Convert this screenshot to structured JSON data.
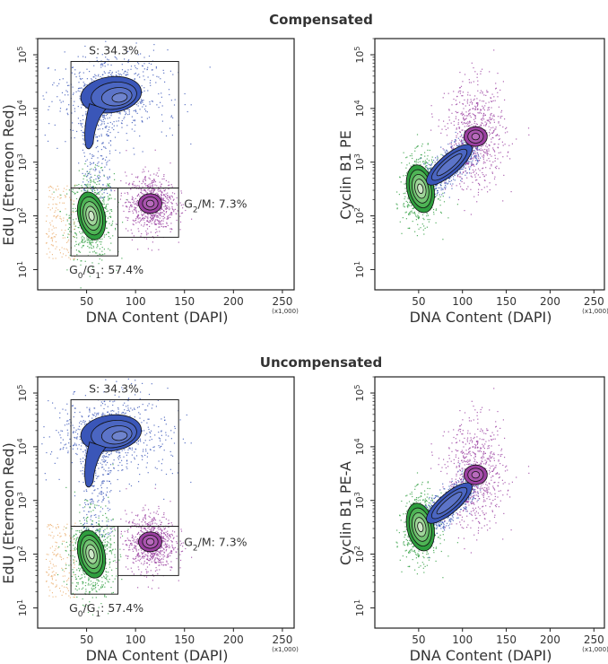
{
  "panels": [
    {
      "title": "Compensated"
    },
    {
      "title": "Uncompensated"
    }
  ],
  "chart_data": [
    {
      "type": "scatter",
      "panel": "Compensated",
      "xlabel": "DNA Content (DAPI)",
      "ylabel": "EdU (Eterneon Red)",
      "x_units": "(x1,000)",
      "xlim": [
        0,
        262
      ],
      "ylim": [
        4.2,
        200000
      ],
      "y_scale": "log",
      "x_ticks": [
        50,
        100,
        150,
        200,
        250
      ],
      "x_tick_labels": [
        "50",
        "100",
        "150",
        "200",
        "250"
      ],
      "y_ticks": [
        10,
        100,
        1000,
        10000,
        100000
      ],
      "y_tick_labels": [
        [
          "10",
          "1"
        ],
        [
          "10",
          "2"
        ],
        [
          "10",
          "3"
        ],
        [
          "10",
          "4"
        ],
        [
          "10",
          "5"
        ]
      ],
      "gates": [
        {
          "name": "S",
          "label": "S: 34.3%",
          "x": [
            34,
            144
          ],
          "y": [
            330,
            75000
          ]
        },
        {
          "name": "G0/G1",
          "label_parts": [
            [
              "G",
              ""
            ],
            [
              "0",
              "sub"
            ],
            [
              "/G",
              ""
            ],
            [
              "1",
              "sub"
            ],
            [
              ": 57.4%",
              ""
            ]
          ],
          "x": [
            34,
            82
          ],
          "y": [
            18,
            330
          ]
        },
        {
          "name": "G2/M",
          "label_parts": [
            [
              "G",
              ""
            ],
            [
              "2",
              "sub"
            ],
            [
              "/M: 7.3%",
              ""
            ]
          ],
          "x": [
            82,
            144
          ],
          "y": [
            40,
            330
          ]
        }
      ],
      "populations": [
        {
          "name": "G0/G1",
          "color": "#2e9e3e",
          "center": [
            55,
            100
          ],
          "spread": [
            8,
            0.28
          ]
        },
        {
          "name": "S",
          "color": "#3a56b8",
          "center": [
            75,
            18000
          ],
          "spread": [
            22,
            0.3
          ]
        },
        {
          "name": "G2/M",
          "color": "#9a3fa0",
          "center": [
            115,
            170
          ],
          "spread": [
            9,
            0.2
          ]
        }
      ],
      "colors": {
        "g0g1": "#2e9e3e",
        "s": "#3a56b8",
        "g2m": "#9a3fa0",
        "debris": "#e8a25a"
      }
    },
    {
      "type": "scatter",
      "panel": "Compensated",
      "xlabel": "DNA Content (DAPI)",
      "ylabel": "Cyclin B1 PE",
      "x_units": "(x1,000)",
      "xlim": [
        0,
        262
      ],
      "ylim": [
        4.2,
        200000
      ],
      "y_scale": "log",
      "x_ticks": [
        50,
        100,
        150,
        200,
        250
      ],
      "x_tick_labels": [
        "50",
        "100",
        "150",
        "200",
        "250"
      ],
      "y_ticks": [
        10,
        100,
        1000,
        10000,
        100000
      ],
      "y_tick_labels": [
        [
          "10",
          "1"
        ],
        [
          "10",
          "2"
        ],
        [
          "10",
          "3"
        ],
        [
          "10",
          "4"
        ],
        [
          "10",
          "5"
        ]
      ],
      "populations": [
        {
          "name": "G0/G1",
          "color": "#2e9e3e",
          "center": [
            52,
            320
          ],
          "spread": [
            7,
            0.22
          ]
        },
        {
          "name": "S",
          "color": "#3a56b8",
          "center_path": [
            [
              60,
              400
            ],
            [
              110,
              2000
            ]
          ],
          "spread": [
            6,
            0.15
          ]
        },
        {
          "name": "G2/M",
          "color": "#9a3fa0",
          "center": [
            115,
            3000
          ],
          "spread": [
            12,
            0.35
          ]
        }
      ]
    },
    {
      "type": "scatter",
      "panel": "Uncompensated",
      "xlabel": "DNA Content (DAPI)",
      "ylabel": "EdU (Eterneon Red)",
      "x_units": "(x1,000)",
      "xlim": [
        0,
        262
      ],
      "ylim": [
        4.2,
        200000
      ],
      "y_scale": "log",
      "x_ticks": [
        50,
        100,
        150,
        200,
        250
      ],
      "x_tick_labels": [
        "50",
        "100",
        "150",
        "200",
        "250"
      ],
      "y_ticks": [
        10,
        100,
        1000,
        10000,
        100000
      ],
      "y_tick_labels": [
        [
          "10",
          "1"
        ],
        [
          "10",
          "2"
        ],
        [
          "10",
          "3"
        ],
        [
          "10",
          "4"
        ],
        [
          "10",
          "5"
        ]
      ],
      "gates": [
        {
          "name": "S",
          "label": "S: 34.3%",
          "x": [
            34,
            144
          ],
          "y": [
            330,
            75000
          ]
        },
        {
          "name": "G0/G1",
          "label_parts": [
            [
              "G",
              ""
            ],
            [
              "0",
              "sub"
            ],
            [
              "/G",
              ""
            ],
            [
              "1",
              "sub"
            ],
            [
              ": 57.4%",
              ""
            ]
          ],
          "x": [
            34,
            82
          ],
          "y": [
            18,
            330
          ]
        },
        {
          "name": "G2/M",
          "label_parts": [
            [
              "G",
              ""
            ],
            [
              "2",
              "sub"
            ],
            [
              "/M: 7.3%",
              ""
            ]
          ],
          "x": [
            82,
            144
          ],
          "y": [
            40,
            330
          ]
        }
      ],
      "populations": [
        {
          "name": "G0/G1",
          "color": "#2e9e3e",
          "center": [
            55,
            100
          ],
          "spread": [
            8,
            0.28
          ]
        },
        {
          "name": "S",
          "color": "#3a56b8",
          "center": [
            75,
            18000
          ],
          "spread": [
            22,
            0.3
          ]
        },
        {
          "name": "G2/M",
          "color": "#9a3fa0",
          "center": [
            115,
            170
          ],
          "spread": [
            9,
            0.2
          ]
        }
      ]
    },
    {
      "type": "scatter",
      "panel": "Uncompensated",
      "xlabel": "DNA Content (DAPI)",
      "ylabel": "Cyclin B1 PE-A",
      "x_units": "(x1,000)",
      "xlim": [
        0,
        262
      ],
      "ylim": [
        4.2,
        200000
      ],
      "y_scale": "log",
      "x_ticks": [
        50,
        100,
        150,
        200,
        250
      ],
      "x_tick_labels": [
        "50",
        "100",
        "150",
        "200",
        "250"
      ],
      "y_ticks": [
        10,
        100,
        1000,
        10000,
        100000
      ],
      "y_tick_labels": [
        [
          "10",
          "1"
        ],
        [
          "10",
          "2"
        ],
        [
          "10",
          "3"
        ],
        [
          "10",
          "4"
        ],
        [
          "10",
          "5"
        ]
      ],
      "populations": [
        {
          "name": "G0/G1",
          "color": "#2e9e3e",
          "center": [
            52,
            320
          ],
          "spread": [
            7,
            0.22
          ]
        },
        {
          "name": "S",
          "color": "#3a56b8",
          "center_path": [
            [
              60,
              400
            ],
            [
              110,
              2000
            ]
          ],
          "spread": [
            6,
            0.15
          ]
        },
        {
          "name": "G2/M",
          "color": "#9a3fa0",
          "center": [
            115,
            3000
          ],
          "spread": [
            12,
            0.35
          ]
        }
      ]
    }
  ]
}
